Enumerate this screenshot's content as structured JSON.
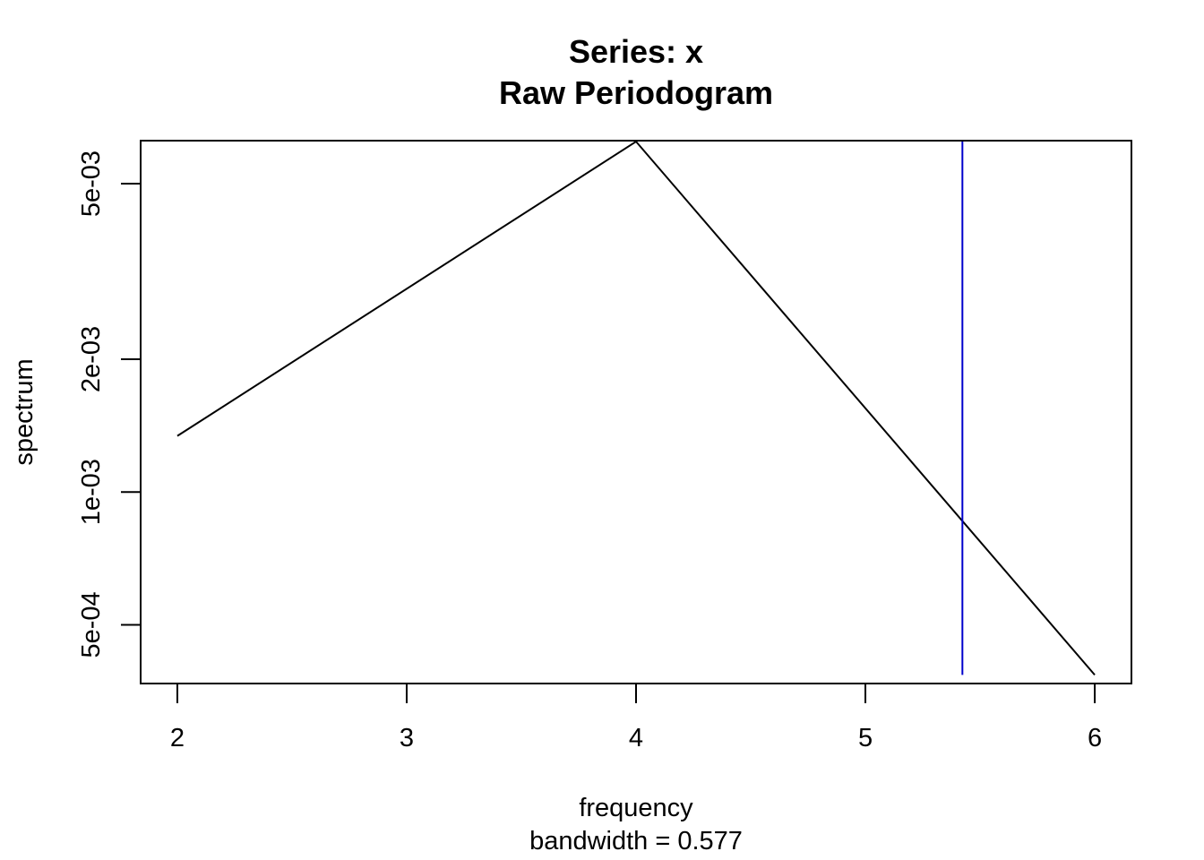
{
  "chart_data": {
    "type": "line",
    "title": "Series: x",
    "subtitle": "Raw Periodogram",
    "xlabel": "frequency",
    "xlabel_sub": "bandwidth = 0.577",
    "ylabel": "spectrum",
    "y_scale": "log",
    "xlim": [
      1.84,
      6.16
    ],
    "ylim": [
      0.000368,
      0.00626
    ],
    "x_ticks": [
      2,
      3,
      4,
      5,
      6
    ],
    "x_tick_labels": [
      "2",
      "3",
      "4",
      "5",
      "6"
    ],
    "y_ticks": [
      0.0005,
      0.001,
      0.002,
      0.005
    ],
    "y_tick_labels": [
      "5e-04",
      "1e-03",
      "2e-03",
      "5e-03"
    ],
    "grid": false,
    "series": [
      {
        "x": [
          2,
          4,
          6
        ],
        "y": [
          0.00134,
          0.00623,
          0.000385
        ],
        "color": "#000000"
      }
    ],
    "bandwidth_marker": {
      "x": 5.423,
      "y_range": [
        0.000385,
        0.00623
      ],
      "color": "#0000CC"
    }
  }
}
